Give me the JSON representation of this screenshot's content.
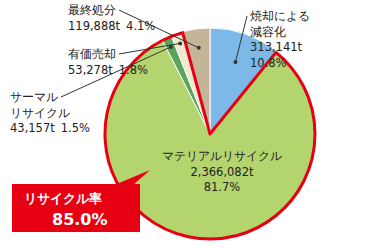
{
  "chart_data": {
    "type": "pie",
    "categories": [
      "焼却による\n減容化",
      "マテリアルリサイクル",
      "サーマル\nリサイクル",
      "有価売却",
      "最終処分"
    ],
    "values": [
      313141,
      2366082,
      43157,
      53278,
      119888
    ],
    "value_labels": [
      "313,141t",
      "2,366,082t",
      "43,157t",
      "53,278t",
      "119,888t"
    ],
    "percents": [
      10.8,
      81.7,
      1.5,
      1.8,
      4.1
    ],
    "percent_labels": [
      "10.8%",
      "81.7%",
      "1.5%",
      "1.8%",
      "4.1%"
    ],
    "colors": [
      "#7cb9e8",
      "#b4d46e",
      "#5aa55a",
      "#efe9d0",
      "#c4b598"
    ],
    "annotations": [
      {
        "text": "リサイクル率",
        "value": 85.0,
        "value_label": "85.0%"
      }
    ]
  }
}
